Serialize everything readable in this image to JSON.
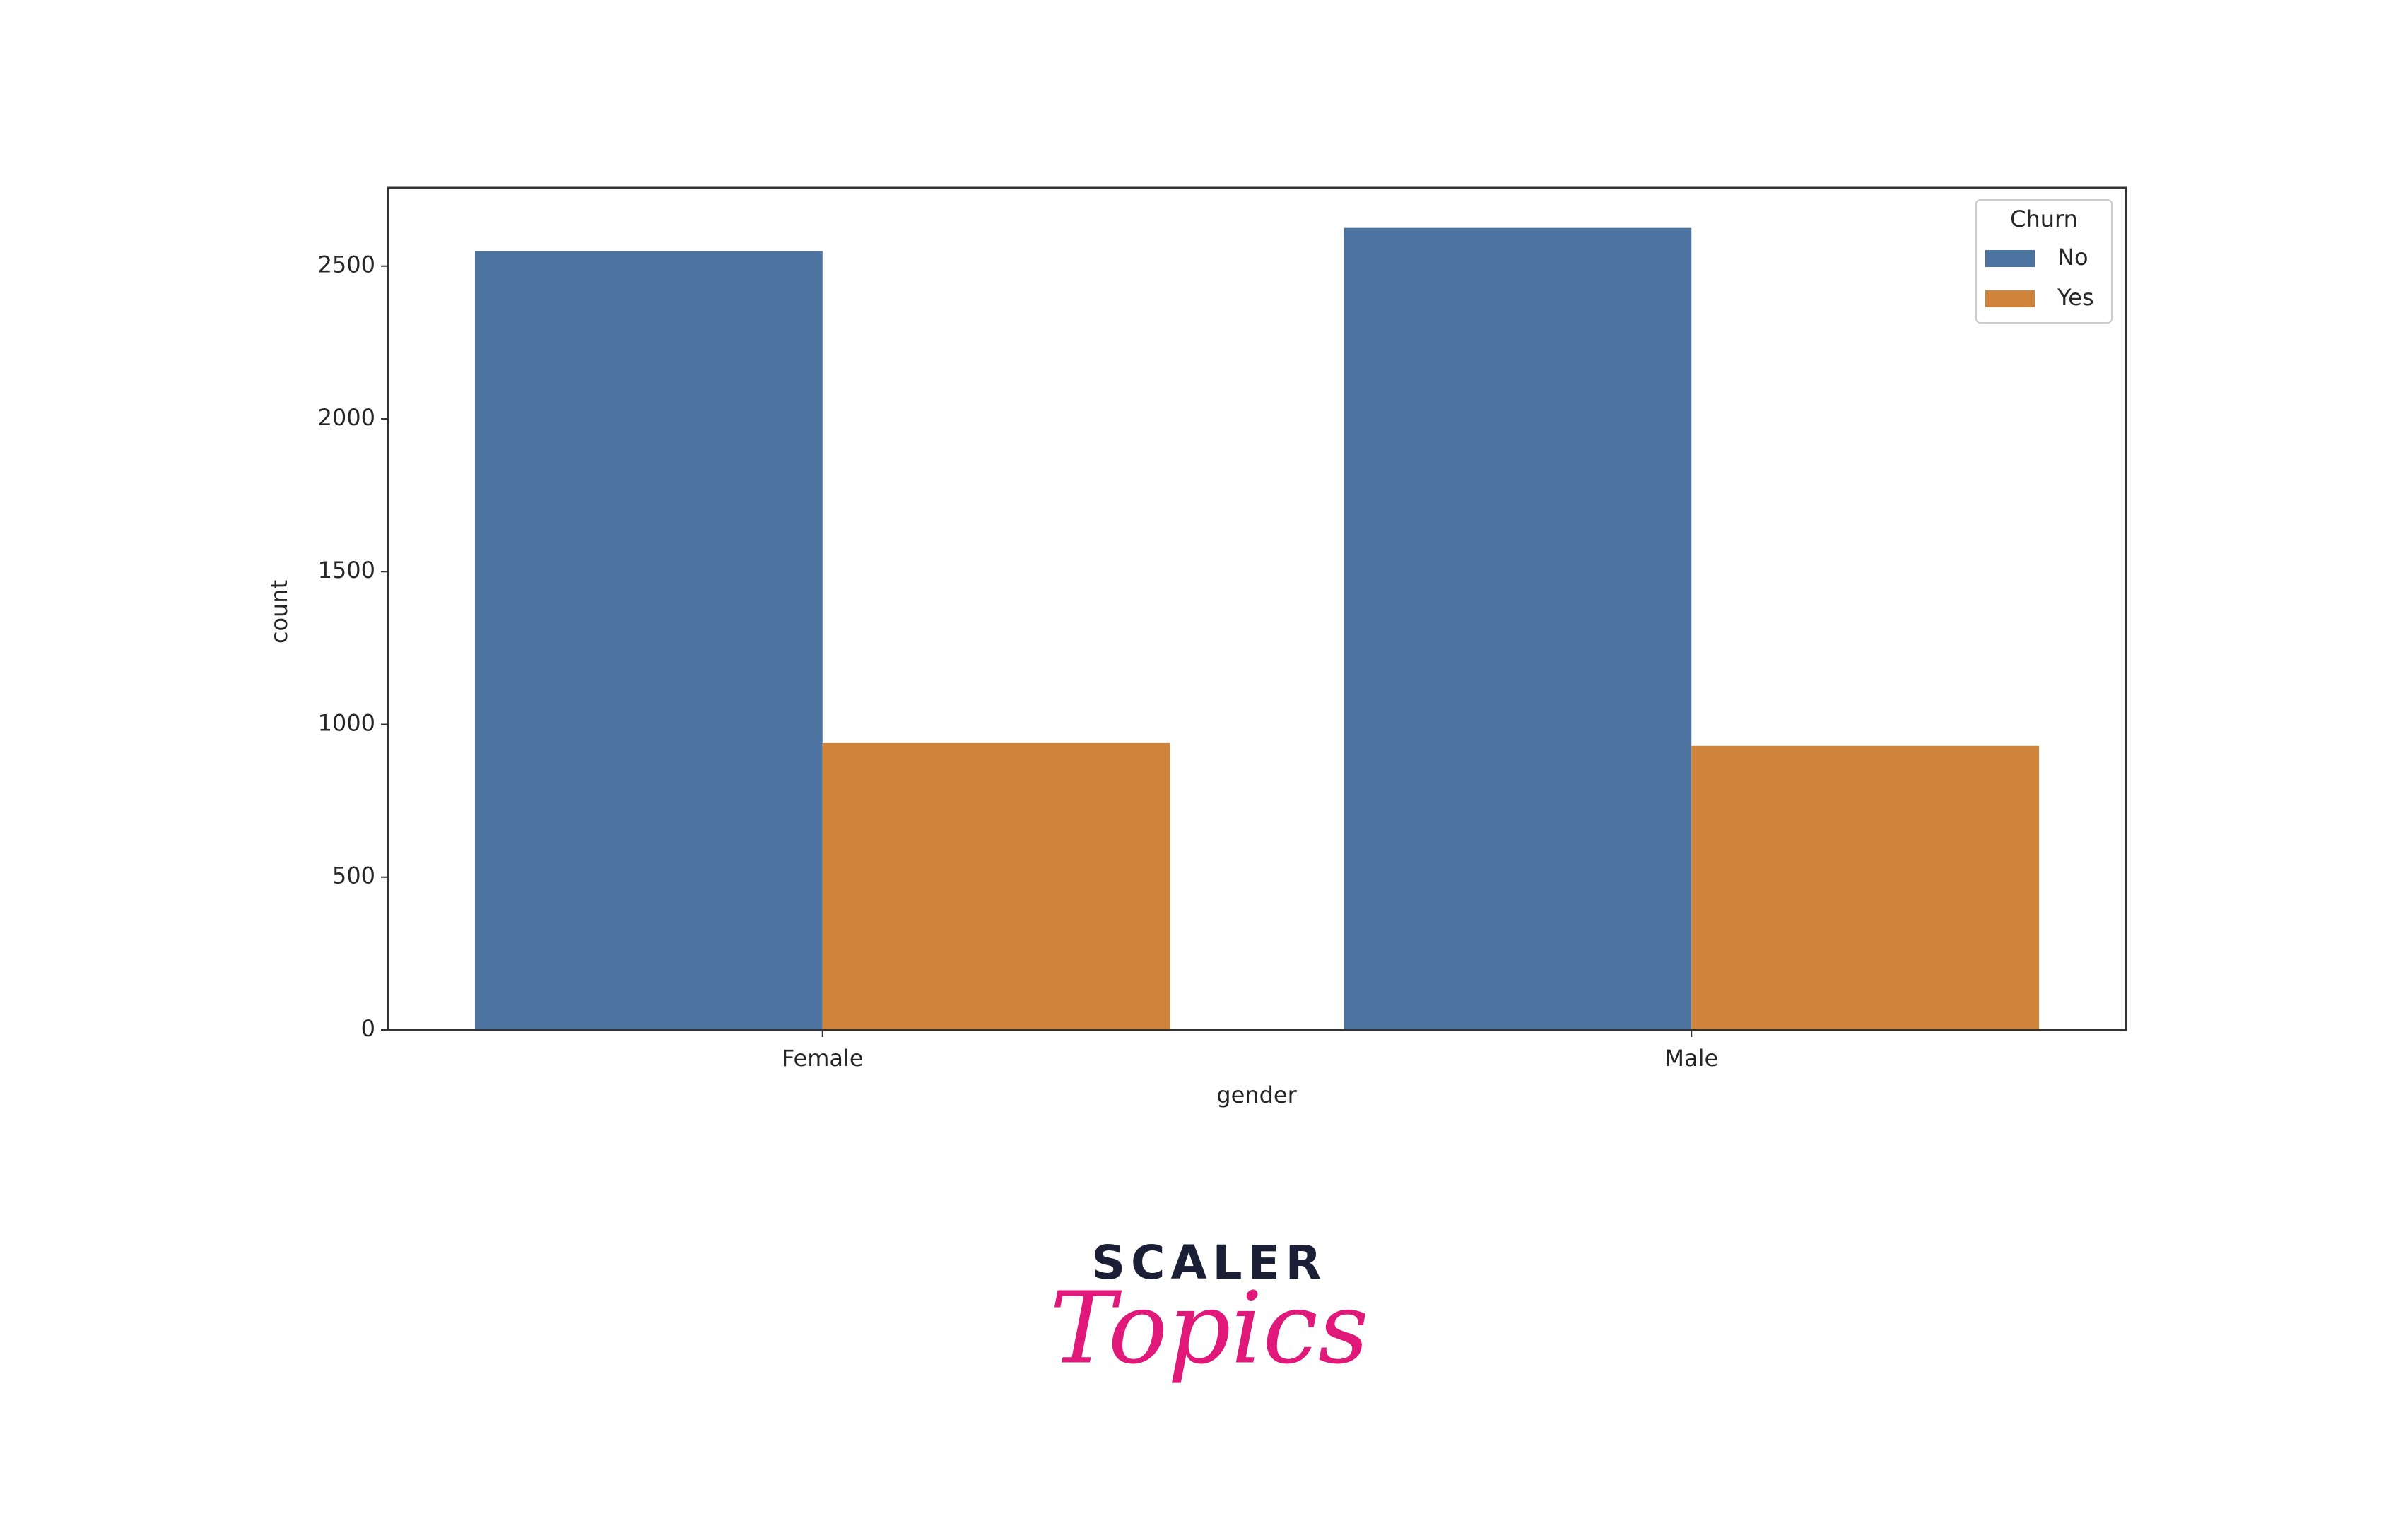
{
  "chart_data": {
    "type": "bar",
    "x_label": "gender",
    "y_label": "count",
    "categories": [
      "Female",
      "Male"
    ],
    "legend_title": "Churn",
    "legend_position": "upper right",
    "series": [
      {
        "name": "No",
        "color": "#4c72a0",
        "values": [
          2549,
          2625
        ]
      },
      {
        "name": "Yes",
        "color": "#d0833a",
        "values": [
          939,
          930
        ]
      }
    ],
    "ylim": [
      0,
      2756
    ],
    "yticks": [
      0,
      500,
      1000,
      1500,
      2000,
      2500
    ]
  },
  "logo": {
    "line1": "SCALER",
    "line2": "Topics"
  }
}
